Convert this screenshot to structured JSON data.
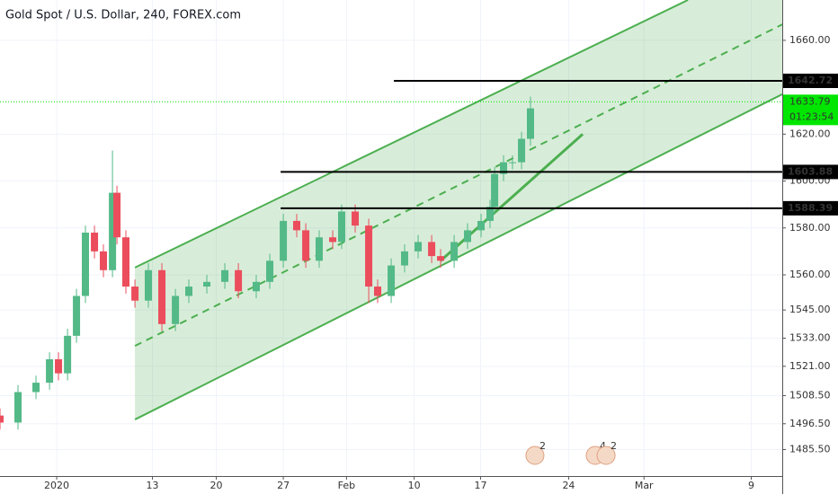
{
  "chart_data": {
    "type": "candlestick",
    "title": "Gold Spot / U.S. Dollar, 240, FOREX.com",
    "up_color": "#53b987",
    "down_color": "#eb4d5c",
    "grid": true,
    "grid_color": "#f0f3fa",
    "x": [
      -4.44,
      -3.03,
      -1.62,
      -0.56,
      0.14,
      0.85,
      1.55,
      2.25,
      2.96,
      3.66,
      4.37,
      4.72,
      5.42,
      6.13,
      7.18,
      8.24,
      9.3,
      10.35,
      11.76,
      13.17,
      14.23,
      15.63,
      16.69,
      17.75,
      18.8,
      19.51,
      20.56,
      21.62,
      22.32,
      23.38,
      24.44,
      25.14,
      26.2,
      27.25,
      28.31,
      29.37,
      30.07,
      31.13,
      32.18,
      33.24,
      33.94,
      34.3,
      35,
      35.7,
      36.41,
      37.11
    ],
    "open": [
      1500,
      1497,
      1510,
      1514,
      1524,
      1518,
      1534,
      1551,
      1578,
      1570,
      1562,
      1595,
      1576,
      1555,
      1549,
      1562,
      1539,
      1551,
      1555,
      1557,
      1562,
      1553,
      1557,
      1566,
      1583,
      1579,
      1566,
      1576,
      1574,
      1587,
      1581,
      1555,
      1551,
      1564,
      1570,
      1574,
      1568,
      1566,
      1574,
      1579,
      1583,
      1589,
      1603,
      1608,
      1608,
      1618
    ],
    "high": [
      1503,
      1513,
      1517,
      1527,
      1527,
      1537,
      1554,
      1581,
      1581,
      1573,
      1613,
      1598,
      1579,
      1558,
      1565,
      1565,
      1554,
      1558,
      1560,
      1565,
      1565,
      1560,
      1569,
      1586,
      1586,
      1582,
      1579,
      1579,
      1590,
      1590,
      1584,
      1558,
      1567,
      1573,
      1577,
      1577,
      1571,
      1577,
      1582,
      1586,
      1592,
      1606,
      1611,
      1611,
      1621,
      1636
    ],
    "low": [
      1494,
      1494,
      1507,
      1511,
      1515,
      1515,
      1531,
      1548,
      1567,
      1559,
      1559,
      1573,
      1552,
      1546,
      1546,
      1536,
      1536,
      1548,
      1552,
      1554,
      1550,
      1550,
      1554,
      1563,
      1576,
      1563,
      1563,
      1571,
      1571,
      1578,
      1548,
      1548,
      1548,
      1561,
      1567,
      1565,
      1563,
      1563,
      1571,
      1576,
      1580,
      1586,
      1600,
      1605,
      1605,
      1615
    ],
    "close": [
      1497,
      1510,
      1514,
      1524,
      1518,
      1534,
      1551,
      1578,
      1570,
      1562,
      1595,
      1576,
      1555,
      1549,
      1562,
      1539,
      1551,
      1555,
      1557,
      1562,
      1553,
      1557,
      1566,
      1583,
      1579,
      1566,
      1576,
      1574,
      1587,
      1581,
      1555,
      1551,
      1564,
      1570,
      1574,
      1568,
      1566,
      1574,
      1579,
      1583,
      1589,
      1603,
      1608,
      1608,
      1618,
      1631
    ],
    "xlim": [
      -4.44,
      56.83
    ],
    "ylim": [
      1474.2,
      1677.2
    ],
    "xticks": [
      {
        "value": 0,
        "label": "2020"
      },
      {
        "value": 7.5,
        "label": "13"
      },
      {
        "value": 12.5,
        "label": "20"
      },
      {
        "value": 17.75,
        "label": "27"
      },
      {
        "value": 22.7,
        "label": "Feb"
      },
      {
        "value": 28,
        "label": "10"
      },
      {
        "value": 33.2,
        "label": "17"
      },
      {
        "value": 40.1,
        "label": "24"
      },
      {
        "value": 46,
        "label": "Mar"
      },
      {
        "value": 54.4,
        "label": "9"
      }
    ],
    "yticks": [
      {
        "value": 1485.5,
        "label": "1485.50"
      },
      {
        "value": 1496.5,
        "label": "1496.50"
      },
      {
        "value": 1508.5,
        "label": "1508.50"
      },
      {
        "value": 1521,
        "label": "1521.00"
      },
      {
        "value": 1533,
        "label": "1533.00"
      },
      {
        "value": 1545,
        "label": "1545.00"
      },
      {
        "value": 1560,
        "label": "1560.00"
      },
      {
        "value": 1580,
        "label": "1580.00"
      },
      {
        "value": 1600,
        "label": "1600.00"
      },
      {
        "value": 1620,
        "label": "1620.00"
      },
      {
        "value": 1660,
        "label": "1660.00"
      }
    ],
    "channel": {
      "color": "#4caf50",
      "fill": "rgba(76,175,80,0.22)",
      "upper": {
        "x": [
          6.13,
          49.44
        ],
        "y": [
          1563.1,
          1677.2
        ]
      },
      "middle": {
        "x": [
          6.13,
          57.18
        ],
        "y": [
          1529.7,
          1667.7
        ]
      },
      "lower": {
        "x": [
          6.13,
          56.83
        ],
        "y": [
          1498.3,
          1637.0
        ]
      }
    },
    "trendline": {
      "color": "#4caf50",
      "x": [
        30.07,
        41.2
      ],
      "y": [
        1566,
        1620
      ]
    },
    "levels": [
      {
        "start": 26.41,
        "value": 1642.72,
        "color": "#000000"
      },
      {
        "start": 17.54,
        "value": 1603.88,
        "color": "#000000"
      },
      {
        "start": 17.54,
        "value": 1588.39,
        "color": "#000000"
      }
    ],
    "last_price": {
      "value": 1633.79,
      "countdown": "01:23:54",
      "color": "#00e600"
    },
    "event_markers": [
      {
        "x": 37.46,
        "label": "2"
      },
      {
        "x": 42.18,
        "label": "4"
      },
      {
        "x": 43.03,
        "label": "2"
      }
    ]
  }
}
